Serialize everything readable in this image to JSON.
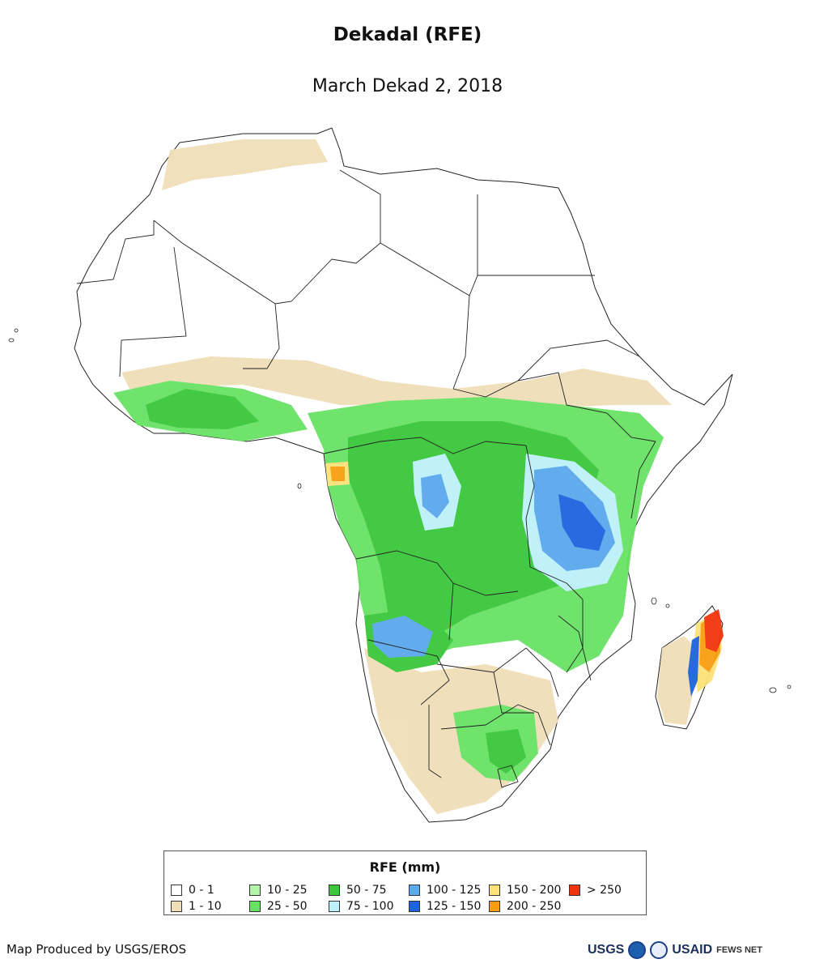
{
  "header": {
    "title": "Dekadal (RFE)",
    "subtitle": "March Dekad 2, 2018"
  },
  "map": {
    "region": "Africa",
    "ocean_color": "#ffffff",
    "boundary_color": "#222222"
  },
  "legend": {
    "title": "RFE (mm)",
    "classes": [
      {
        "label": "0 - 1",
        "color": "#ffffff"
      },
      {
        "label": "1 - 10",
        "color": "#f0deb8"
      },
      {
        "label": "10 - 25",
        "color": "#b2f5a8"
      },
      {
        "label": "25 - 50",
        "color": "#68e264"
      },
      {
        "label": "50 - 75",
        "color": "#3ac73a"
      },
      {
        "label": "75 - 100",
        "color": "#bdf0f8"
      },
      {
        "label": "100 - 125",
        "color": "#5aa8ee"
      },
      {
        "label": "125 - 150",
        "color": "#1d63df"
      },
      {
        "label": "150 - 200",
        "color": "#fde27a"
      },
      {
        "label": "200 - 250",
        "color": "#f99e0f"
      },
      {
        "label": "> 250",
        "color": "#f2340d"
      }
    ]
  },
  "footer": {
    "credit": "Map Produced by USGS/EROS",
    "logos": [
      "USGS",
      "NOAA",
      "USAID",
      "FEWS NET"
    ]
  }
}
